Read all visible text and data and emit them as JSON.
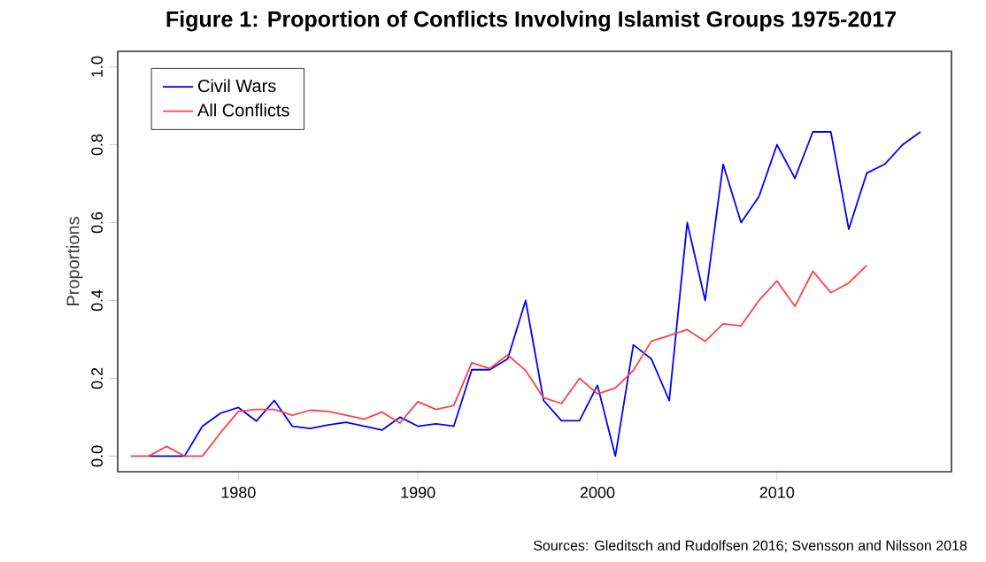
{
  "chart_data": {
    "type": "line",
    "title": "Figure 1: Proportion of Conflicts Involving Islamist Groups 1975-2017",
    "ylabel": "Proportions",
    "annotations": [
      "Sources: Gleditsch and Rudolfsen 2016; Svensson and Nilsson 2018"
    ],
    "xlim": [
      1973.28,
      2019.72
    ],
    "xticks": [
      1980,
      1990,
      2000,
      2010
    ],
    "ylim": [
      -0.04,
      1.04
    ],
    "yticks": [
      {
        "value": 0,
        "label": "0.0"
      },
      0.2,
      0.4,
      0.6,
      0.8,
      {
        "value": 1,
        "label": "1.0"
      }
    ],
    "grid": false,
    "legend": "top left",
    "marker": "none",
    "line_style": "solid",
    "series": [
      {
        "name": "Civil Wars",
        "color": "#0000ff",
        "x": [
          1975,
          1976,
          1977,
          1978,
          1979,
          1980,
          1981,
          1982,
          1983,
          1984,
          1985,
          1986,
          1987,
          1988,
          1989,
          1990,
          1991,
          1992,
          1993,
          1994,
          1995,
          1996,
          1997,
          1998,
          1999,
          2000,
          2001,
          2002,
          2003,
          2004,
          2005,
          2006,
          2007,
          2008,
          2009,
          2010,
          2011,
          2012,
          2013,
          2014,
          2015,
          2016,
          2017,
          2018
        ],
        "values": [
          0,
          0,
          0,
          0.077,
          0.11,
          0.125,
          0.09,
          0.143,
          0.077,
          0.071,
          0.08,
          0.087,
          0.077,
          0.067,
          0.1,
          0.077,
          0.083,
          0.077,
          0.222,
          0.222,
          0.25,
          0.4,
          0.143,
          0.091,
          0.091,
          0.182,
          0,
          0.286,
          0.25,
          0.143,
          0.6,
          0.4,
          0.75,
          0.6,
          0.667,
          0.8,
          0.714,
          0.833,
          0.833,
          0.583,
          0.727,
          0.75,
          0.8,
          0.833
        ]
      },
      {
        "name": "All Conflicts",
        "color": "#ff4040",
        "x": [
          1974,
          1975,
          1976,
          1977,
          1978,
          1979,
          1980,
          1981,
          1982,
          1983,
          1984,
          1985,
          1986,
          1987,
          1988,
          1989,
          1990,
          1991,
          1992,
          1993,
          1994,
          1995,
          1996,
          1997,
          1998,
          1999,
          2000,
          2001,
          2002,
          2003,
          2004,
          2005,
          2006,
          2007,
          2008,
          2009,
          2010,
          2011,
          2012,
          2013,
          2014,
          2015
        ],
        "values": [
          0,
          0,
          0.025,
          0,
          0,
          0.06,
          0.115,
          0.12,
          0.12,
          0.105,
          0.118,
          0.115,
          0.105,
          0.095,
          0.113,
          0.085,
          0.14,
          0.12,
          0.13,
          0.24,
          0.225,
          0.26,
          0.22,
          0.15,
          0.135,
          0.2,
          0.16,
          0.175,
          0.22,
          0.295,
          0.31,
          0.325,
          0.295,
          0.34,
          0.335,
          0.4,
          0.45,
          0.385,
          0.475,
          0.42,
          0.445,
          0.49
        ]
      }
    ]
  }
}
